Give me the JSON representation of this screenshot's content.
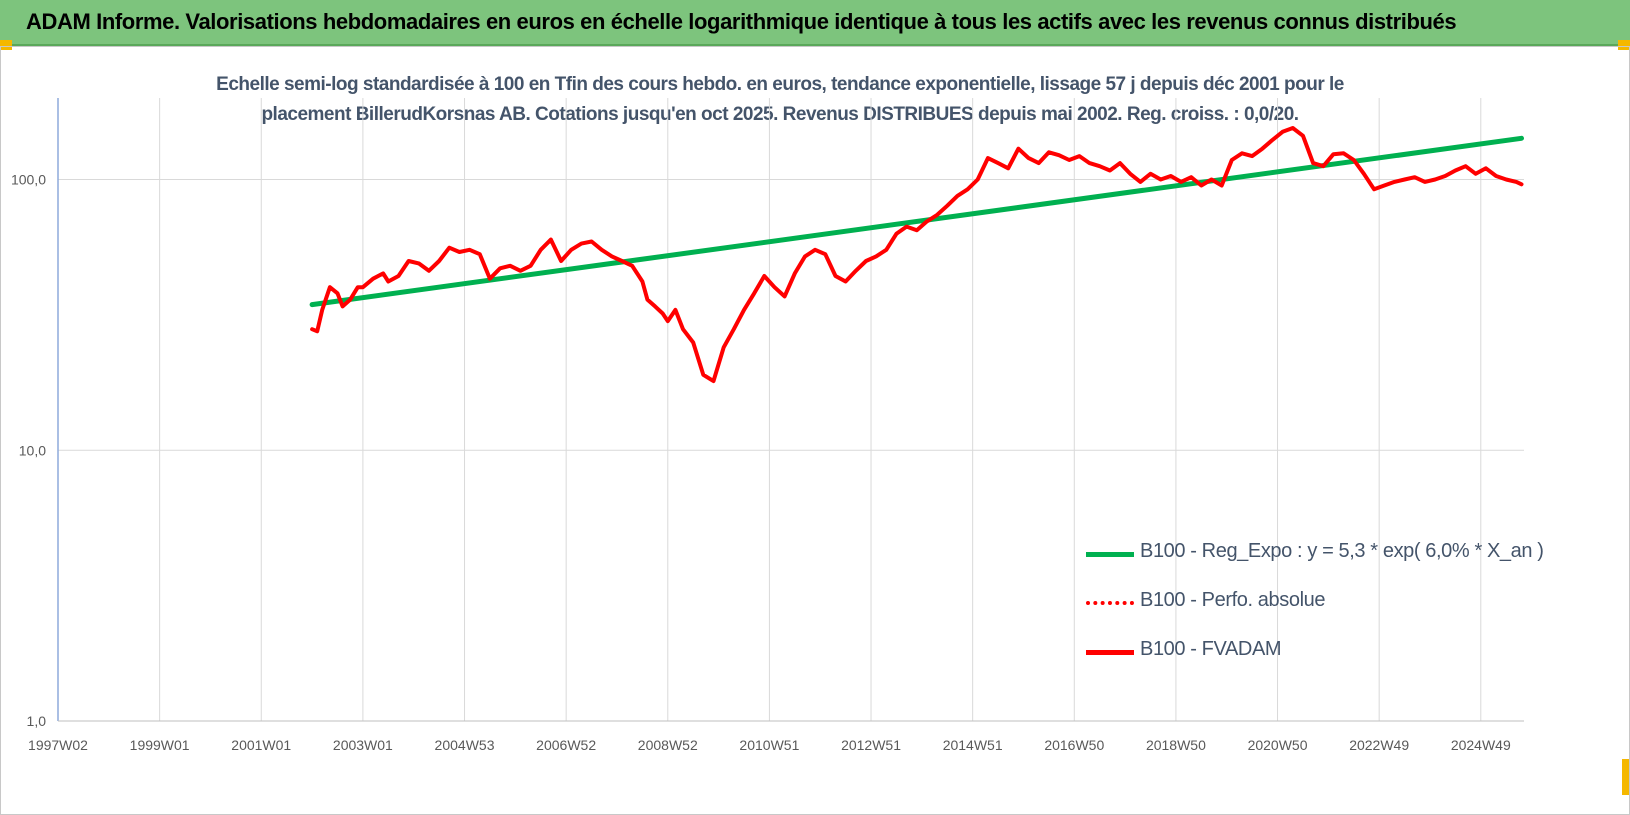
{
  "banner": {
    "title": "ADAM Informe. Valorisations hebdomadaires en euros en échelle logarithmique identique à tous les actifs avec les revenus connus distribués"
  },
  "colors": {
    "banner_bg": "#7dc47d",
    "corner_mark": "#f5b800",
    "trend": "#00b050",
    "fvadam": "#ff0000",
    "perfo": "#ff0000",
    "axis_text": "#595959",
    "grid": "#d9d9d9"
  },
  "chart_data": {
    "type": "line",
    "title": "Echelle semi-log standardisée à 100 en Tfin des cours hebdo. en euros, tendance exponentielle, lissage 57 j depuis déc 2001 pour le placement BillerudKorsnas AB. Cotations jusqu'en oct 2025. Revenus DISTRIBUES depuis mai 2002. Reg. croiss. : 0,0/20.",
    "title_lines": [
      "Echelle semi-log standardisée à 100 en Tfin des cours hebdo. en euros, tendance exponentielle, lissage 57 j depuis déc 2001 pour le",
      "placement BillerudKorsnas AB. Cotations jusqu'en oct 2025. Revenus DISTRIBUES depuis mai 2002. Reg. croiss. : 0,0/20."
    ],
    "y_scale": "log",
    "ylim": [
      1,
      200
    ],
    "y_ticks": [
      1,
      10,
      100
    ],
    "y_tick_labels": [
      "1,0",
      "10,0",
      "100,0"
    ],
    "xlim": [
      1997.0,
      2025.85
    ],
    "x_tick_positions": [
      1997.0,
      1999.0,
      2001.0,
      2003.0,
      2005.0,
      2007.0,
      2009.0,
      2011.0,
      2013.0,
      2015.0,
      2017.0,
      2019.0,
      2021.0,
      2023.0,
      2025.0
    ],
    "x_tick_labels": [
      "1997W02",
      "1999W01",
      "2001W01",
      "2003W01",
      "2004W53",
      "2006W52",
      "2008W52",
      "2010W51",
      "2012W51",
      "2014W51",
      "2016W50",
      "2018W50",
      "2020W50",
      "2022W49",
      "2024W49"
    ],
    "grid": "vertical",
    "legend_position": "bottom-right",
    "series": [
      {
        "name": "B100 - Reg_Expo : y = 5,3 * exp( 6,0% *  X_an )",
        "style": "solid",
        "x": [
          2002.0,
          2025.8
        ],
        "y": [
          34.5,
          142
        ]
      },
      {
        "name": "B100 - Perfo. absolue",
        "style": "dotted",
        "x": [],
        "y": []
      },
      {
        "name": "B100 - FVADAM",
        "style": "solid",
        "x": [
          2002.0,
          2002.1,
          2002.2,
          2002.35,
          2002.5,
          2002.6,
          2002.75,
          2002.9,
          2003.0,
          2003.2,
          2003.4,
          2003.5,
          2003.7,
          2003.9,
          2004.1,
          2004.3,
          2004.5,
          2004.7,
          2004.9,
          2005.1,
          2005.3,
          2005.5,
          2005.7,
          2005.9,
          2006.1,
          2006.3,
          2006.5,
          2006.7,
          2006.9,
          2007.1,
          2007.3,
          2007.5,
          2007.7,
          2007.9,
          2008.1,
          2008.3,
          2008.5,
          2008.6,
          2008.75,
          2008.9,
          2009.0,
          2009.15,
          2009.3,
          2009.5,
          2009.7,
          2009.9,
          2010.1,
          2010.3,
          2010.5,
          2010.7,
          2010.9,
          2011.1,
          2011.3,
          2011.5,
          2011.7,
          2011.9,
          2012.1,
          2012.3,
          2012.5,
          2012.7,
          2012.9,
          2013.1,
          2013.3,
          2013.5,
          2013.7,
          2013.9,
          2014.1,
          2014.3,
          2014.5,
          2014.7,
          2014.9,
          2015.1,
          2015.3,
          2015.5,
          2015.7,
          2015.9,
          2016.1,
          2016.3,
          2016.5,
          2016.7,
          2016.9,
          2017.1,
          2017.3,
          2017.5,
          2017.7,
          2017.9,
          2018.1,
          2018.3,
          2018.5,
          2018.7,
          2018.9,
          2019.1,
          2019.3,
          2019.5,
          2019.7,
          2019.9,
          2020.1,
          2020.3,
          2020.5,
          2020.7,
          2020.9,
          2021.1,
          2021.3,
          2021.5,
          2021.7,
          2021.9,
          2022.1,
          2022.3,
          2022.5,
          2022.7,
          2022.9,
          2023.1,
          2023.3,
          2023.5,
          2023.7,
          2023.9,
          2024.1,
          2024.3,
          2024.5,
          2024.7,
          2024.9,
          2025.1,
          2025.3,
          2025.5,
          2025.7,
          2025.8
        ],
        "y": [
          28,
          27.5,
          33,
          40,
          38,
          34,
          36,
          40,
          40,
          43,
          45,
          42,
          44,
          50,
          49,
          46,
          50,
          56,
          54,
          55,
          53,
          43,
          47,
          48,
          46,
          48,
          55,
          60,
          50,
          55,
          58,
          59,
          55,
          52,
          50,
          48,
          42,
          36,
          34,
          32,
          30,
          33,
          28,
          25,
          19,
          18,
          24,
          28,
          33,
          38,
          44,
          40,
          37,
          45,
          52,
          55,
          53,
          44,
          42,
          46,
          50,
          52,
          55,
          63,
          67,
          65,
          70,
          74,
          80,
          87,
          92,
          100,
          120,
          115,
          110,
          130,
          120,
          115,
          126,
          123,
          118,
          122,
          115,
          112,
          108,
          115,
          105,
          98,
          105,
          100,
          103,
          98,
          102,
          95,
          100,
          95,
          118,
          125,
          122,
          130,
          140,
          150,
          155,
          145,
          115,
          112,
          124,
          125,
          118,
          105,
          92,
          95,
          98,
          100,
          102,
          98,
          100,
          103,
          108,
          112,
          105,
          110,
          103,
          100,
          98,
          96
        ]
      }
    ]
  }
}
